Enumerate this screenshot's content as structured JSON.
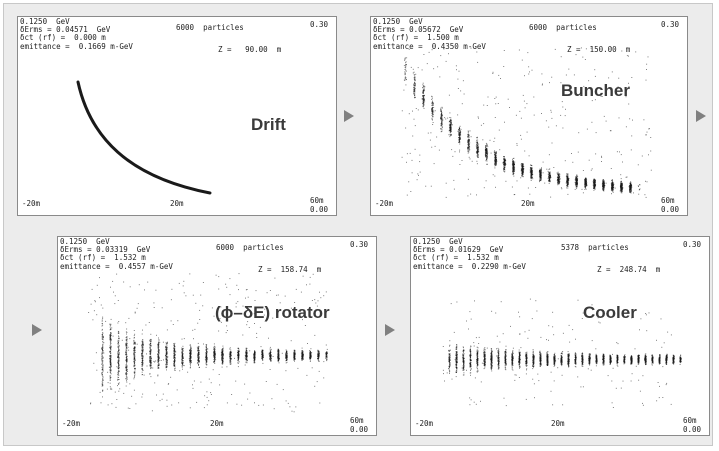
{
  "panels": [
    {
      "stage": "Drift",
      "info": [
        "0.1250  GeV",
        "δErms = 0.04571  GeV",
        "δct (rf) =  0.000 m",
        "emittance =  0.1669 m-GeV"
      ],
      "particles": "6000  particles",
      "z": "Z =   90.00  m",
      "y_scale": "0.30",
      "x_min": "-20m",
      "x_mid": "20m",
      "x_max": "60m",
      "y_min": "0.00"
    },
    {
      "stage": "Buncher",
      "info": [
        "0.1250  GeV",
        "δErms = 0.05672  GeV",
        "δct (rf) =  1.500 m",
        "emittance =  0.4350 m-GeV"
      ],
      "particles": "6000  particles",
      "z": "Z =  150.00  m",
      "y_scale": "0.30",
      "x_min": "-20m",
      "x_mid": "20m",
      "x_max": "60m",
      "y_min": "0.00"
    },
    {
      "stage": "(ϕ–δE) rotator",
      "info": [
        "0.1250  GeV",
        "δErms = 0.03319  GeV",
        "δct (rf) =  1.532 m",
        "emittance =  0.4557 m-GeV"
      ],
      "particles": "6000  particles",
      "z": "Z =  158.74  m",
      "y_scale": "0.30",
      "x_min": "-20m",
      "x_mid": "20m",
      "x_max": "60m",
      "y_min": "0.00"
    },
    {
      "stage": "Cooler",
      "info": [
        "0.1250  GeV",
        "δErms = 0.01629  GeV",
        "δct (rf) =  1.532 m",
        "emittance =  0.2290 m-GeV"
      ],
      "particles": "5378  particles",
      "z": "Z =  248.74  m",
      "y_scale": "0.30",
      "x_min": "-20m",
      "x_mid": "20m",
      "x_max": "60m",
      "y_min": "0.00"
    }
  ],
  "arrow_icons": [
    "play-arrow-icon",
    "play-arrow-icon",
    "play-arrow-icon",
    "play-arrow-icon"
  ],
  "colors": {
    "frame": "#ececec",
    "particles": "#1a1a1a",
    "arrow": "#808080",
    "title": "#3a3a3a"
  }
}
